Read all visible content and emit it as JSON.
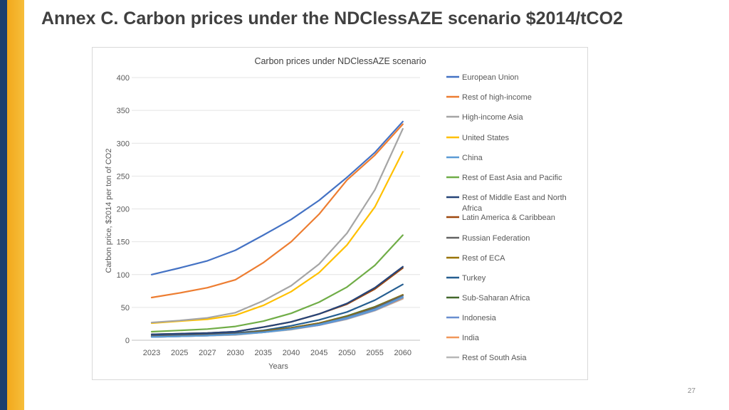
{
  "slide": {
    "title": "Annex C. Carbon prices under the NDClessAZE scenario $2014/tCO2",
    "page_number": "27"
  },
  "chart_data": {
    "type": "line",
    "title": "Carbon prices under NDClessAZE scenario",
    "xlabel": "Years",
    "ylabel": "Carbon price, $2014 per ton of CO2",
    "ylim": [
      0,
      400
    ],
    "yticks": [
      0,
      50,
      100,
      150,
      200,
      250,
      300,
      350,
      400
    ],
    "grid": true,
    "legend_position": "right",
    "categories": [
      "2023",
      "2025",
      "2027",
      "2030",
      "2035",
      "2040",
      "2045",
      "2050",
      "2055",
      "2060"
    ],
    "series": [
      {
        "name": "European Union",
        "color": "#4472c4",
        "values": [
          100,
          110,
          121,
          137,
          160,
          184,
          213,
          248,
          286,
          333
        ]
      },
      {
        "name": "Rest of high-income",
        "color": "#ed7d31",
        "values": [
          65,
          72,
          80,
          92,
          118,
          150,
          192,
          244,
          282,
          329
        ]
      },
      {
        "name": "High-income Asia",
        "color": "#a5a5a5",
        "values": [
          27,
          30,
          34,
          42,
          60,
          83,
          116,
          163,
          229,
          322
        ]
      },
      {
        "name": "United States",
        "color": "#ffc000",
        "values": [
          26,
          29,
          32,
          38,
          53,
          74,
          103,
          145,
          203,
          287
        ]
      },
      {
        "name": "China",
        "color": "#5b9bd5",
        "values": [
          5,
          6,
          7,
          9,
          12,
          17,
          24,
          34,
          47,
          66
        ]
      },
      {
        "name": "Rest of East Asia and Pacific",
        "color": "#70ad47",
        "values": [
          13,
          15,
          17,
          21,
          29,
          41,
          58,
          81,
          114,
          160
        ]
      },
      {
        "name": "Rest of Middle East and North Africa",
        "color": "#264478",
        "values": [
          9,
          10,
          11,
          13,
          20,
          28,
          40,
          56,
          80,
          112
        ]
      },
      {
        "name": "Latin America & Caribbean",
        "color": "#9e480e",
        "values": [
          9,
          10,
          11,
          13,
          20,
          28,
          40,
          55,
          78,
          110
        ]
      },
      {
        "name": "Russian Federation",
        "color": "#636363",
        "values": [
          6,
          7,
          8,
          10,
          13,
          18,
          25,
          35,
          49,
          68
        ]
      },
      {
        "name": "Rest of ECA",
        "color": "#997300",
        "values": [
          6,
          7,
          8,
          10,
          14,
          19,
          26,
          36,
          50,
          69
        ]
      },
      {
        "name": "Turkey",
        "color": "#255e91",
        "values": [
          7,
          8,
          9,
          11,
          15,
          22,
          31,
          43,
          61,
          85
        ]
      },
      {
        "name": "Sub-Saharan Africa",
        "color": "#43682b",
        "values": [
          6,
          7,
          8,
          10,
          14,
          19,
          26,
          37,
          51,
          69
        ]
      },
      {
        "name": "Indonesia",
        "color": "#698ed0",
        "values": [
          5,
          6,
          7,
          9,
          12,
          17,
          23,
          33,
          46,
          65
        ]
      },
      {
        "name": "India",
        "color": "#f1975a",
        "values": [
          5,
          6,
          7,
          9,
          12,
          17,
          23,
          33,
          46,
          64
        ]
      },
      {
        "name": "Rest of South Asia",
        "color": "#b7b7b7",
        "values": [
          5,
          6,
          7,
          8,
          12,
          16,
          23,
          32,
          45,
          63
        ]
      }
    ]
  }
}
